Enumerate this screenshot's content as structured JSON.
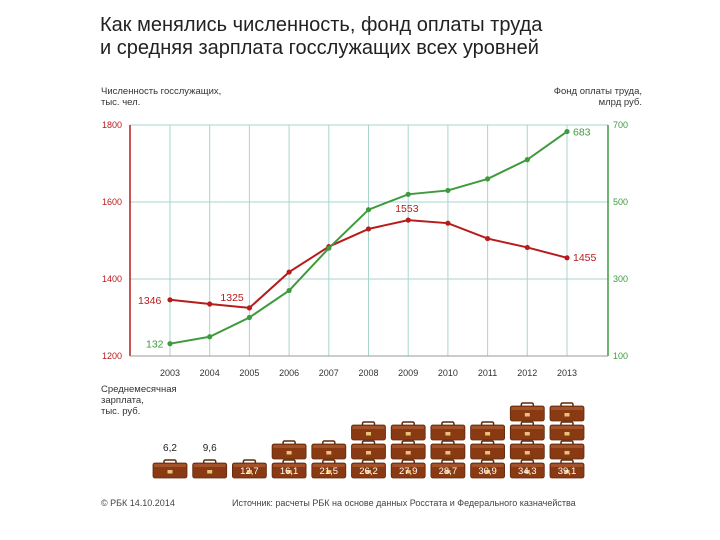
{
  "title_lines": [
    "Как менялись численность, фонд оплаты труда",
    "и средняя зарплата госслужащих всех уровней"
  ],
  "left_axis_title": [
    "Численность госслужащих,",
    "тыс. чел."
  ],
  "right_axis_title": [
    "Фонд оплаты труда,",
    "млрд руб."
  ],
  "salary_title": [
    "Среднемесячная",
    "зарплата,",
    "тыс. руб."
  ],
  "footer": {
    "left": "© РБК 14.10.2014",
    "right": "Источник: расчеты РБК на основе данных Росстата и Федерального казначейства"
  },
  "colors": {
    "employees": "#b71c1c",
    "payroll": "#3f9a3f",
    "grid": "#a9d6cc",
    "axis_left": "#b71c1c",
    "axis_right": "#3f9a3f",
    "briefcase": "#8a3a12",
    "salary_text": "#ffffff"
  },
  "chart_data": {
    "type": "line",
    "title": "Как менялись численность, фонд оплаты труда и средняя зарплата госслужащих всех уровней",
    "categories": [
      "2003",
      "2004",
      "2005",
      "2006",
      "2007",
      "2008",
      "2009",
      "2010",
      "2011",
      "2012",
      "2013"
    ],
    "left_axis": {
      "label": "Численность госслужащих, тыс. чел.",
      "ylim": [
        1200,
        1800
      ],
      "ticks": [
        "1800",
        "1600",
        "1400",
        "1200"
      ]
    },
    "right_axis": {
      "label": "Фонд оплаты труда, млрд руб.",
      "ylim": [
        100,
        700
      ],
      "ticks": [
        "700",
        "500",
        "300",
        "100"
      ]
    },
    "series": [
      {
        "name": "Численность госслужащих",
        "axis": "left",
        "values": [
          1346,
          1335,
          1325,
          1418,
          1484,
          1530,
          1553,
          1545,
          1505,
          1482,
          1455
        ]
      },
      {
        "name": "Фонд оплаты труда",
        "axis": "right",
        "values": [
          132,
          150,
          200,
          270,
          380,
          480,
          520,
          530,
          560,
          610,
          683
        ]
      }
    ],
    "point_labels": [
      {
        "series": 0,
        "index": 0,
        "text": "1346"
      },
      {
        "series": 0,
        "index": 2,
        "text": "1325"
      },
      {
        "series": 0,
        "index": 6,
        "text": "1553"
      },
      {
        "series": 0,
        "index": 10,
        "text": "1455"
      },
      {
        "series": 1,
        "index": 0,
        "text": "132"
      },
      {
        "series": 1,
        "index": 10,
        "text": "683"
      }
    ],
    "salary": {
      "label": "Среднемесячная зарплата, тыс. руб.",
      "values": [
        "6,2",
        "9,6",
        "12,7",
        "16,1",
        "21,5",
        "26,2",
        "27,9",
        "28,7",
        "30,9",
        "34,3",
        "39,1"
      ],
      "stack_counts": [
        1,
        1,
        1,
        2,
        2,
        3,
        3,
        3,
        3,
        4,
        4
      ],
      "label_inside": [
        false,
        false,
        true,
        true,
        true,
        true,
        true,
        true,
        true,
        true,
        true
      ]
    }
  }
}
